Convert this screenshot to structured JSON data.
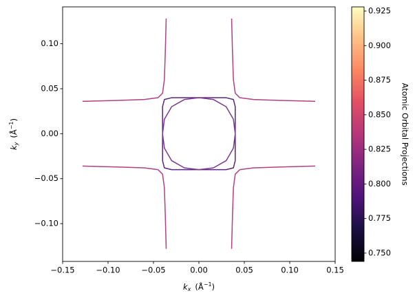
{
  "chart_data": {
    "type": "line",
    "xlabel_parts": [
      "k",
      "x",
      "(Å",
      "−1",
      ")"
    ],
    "ylabel_parts": [
      "k",
      "y",
      "(Å",
      "−1",
      ")"
    ],
    "colorbar_label": "Atomic Orbital Projections",
    "xlim": [
      -0.15,
      0.15
    ],
    "xticks": [
      {
        "value": -0.15,
        "label": "−0.15"
      },
      {
        "value": -0.1,
        "label": "−0.10"
      },
      {
        "value": -0.05,
        "label": "−0.05"
      },
      {
        "value": 0,
        "label": "0.00"
      },
      0.05,
      {
        "value": 0.1,
        "label": "0.10"
      },
      0.15
    ],
    "ylim": [
      -0.142,
      0.141
    ],
    "yticks": [
      {
        "value": -0.1,
        "label": "−0.10"
      },
      {
        "value": -0.05,
        "label": "−0.05"
      },
      {
        "value": 0,
        "label": "0.00"
      },
      0.05,
      {
        "value": 0.1,
        "label": "0.10"
      }
    ],
    "clim": [
      0.744,
      0.928
    ],
    "cticks": [
      {
        "value": 0.75,
        "label": "0.750"
      },
      0.775,
      {
        "value": 0.8,
        "label": "0.800"
      },
      0.825,
      {
        "value": 0.85,
        "label": "0.850"
      },
      0.875,
      {
        "value": 0.9,
        "label": "0.900"
      },
      0.925
    ],
    "colormap": "magma",
    "series": [
      {
        "color": "#b23f7f",
        "x": [
          0.036,
          0.037,
          0.038,
          0.04,
          0.045,
          0.06,
          0.09,
          0.128
        ],
        "y": [
          0.128,
          0.09,
          0.06,
          0.045,
          0.04,
          0.038,
          0.037,
          0.036
        ]
      },
      {
        "color": "#b23f7f",
        "x": [
          -0.036,
          -0.037,
          -0.038,
          -0.04,
          -0.045,
          -0.06,
          -0.09,
          -0.128
        ],
        "y": [
          0.128,
          0.09,
          0.06,
          0.045,
          0.04,
          0.038,
          0.037,
          0.036
        ]
      },
      {
        "color": "#b23f7f",
        "x": [
          -0.036,
          -0.037,
          -0.038,
          -0.04,
          -0.045,
          -0.06,
          -0.09,
          -0.128
        ],
        "y": [
          -0.128,
          -0.09,
          -0.06,
          -0.045,
          -0.04,
          -0.038,
          -0.037,
          -0.036
        ]
      },
      {
        "color": "#b23f7f",
        "x": [
          0.036,
          0.037,
          0.038,
          0.04,
          0.045,
          0.06,
          0.09,
          0.128
        ],
        "y": [
          -0.128,
          -0.09,
          -0.06,
          -0.045,
          -0.04,
          -0.038,
          -0.037,
          -0.036
        ]
      },
      {
        "color": "#5a2382",
        "x": [
          0.04,
          0.04,
          0.038,
          0.03,
          0,
          -0.03,
          -0.038,
          -0.04,
          -0.04,
          -0.04,
          -0.038,
          -0.03,
          0,
          0.03,
          0.038,
          0.04,
          0.04
        ],
        "y": [
          0,
          0.03,
          0.038,
          0.04,
          0.04,
          0.04,
          0.038,
          0.03,
          0,
          -0.03,
          -0.038,
          -0.04,
          -0.04,
          -0.04,
          -0.038,
          -0.03,
          0
        ]
      },
      {
        "color": "#7a3890",
        "x": [
          0.04,
          0.038,
          0.03,
          0.016,
          0,
          -0.016,
          -0.03,
          -0.038,
          -0.04,
          -0.038,
          -0.03,
          -0.016,
          0,
          0.016,
          0.03,
          0.038,
          0.04
        ],
        "y": [
          0,
          0.016,
          0.03,
          0.038,
          0.04,
          0.038,
          0.03,
          0.016,
          0,
          -0.016,
          -0.03,
          -0.038,
          -0.04,
          -0.038,
          -0.03,
          -0.016,
          0
        ]
      }
    ]
  }
}
